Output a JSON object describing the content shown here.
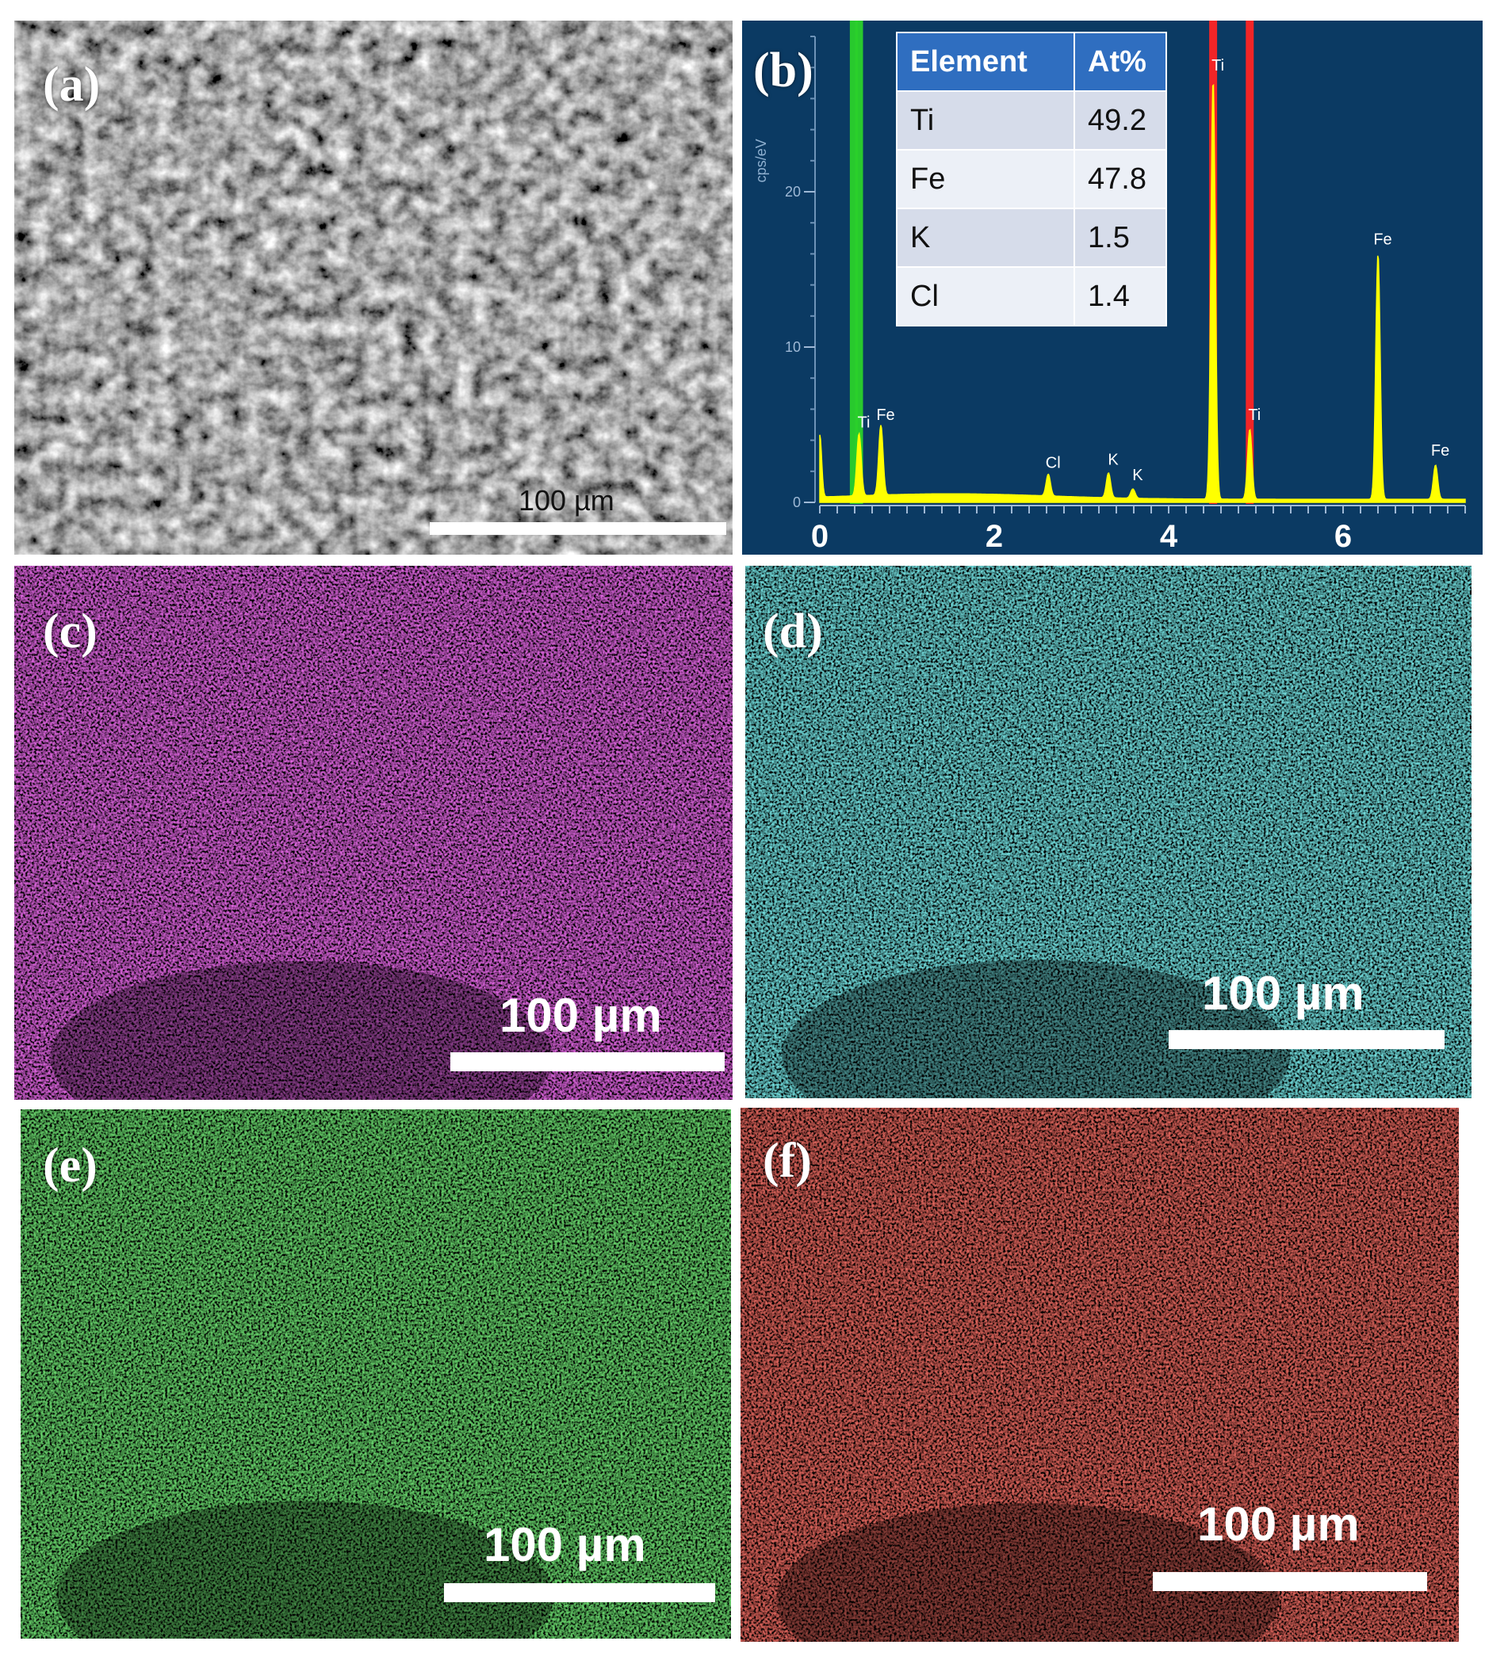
{
  "panels": [
    {
      "id": "a",
      "label": "(a)",
      "kind": "sem",
      "scale_label": "100 µm"
    },
    {
      "id": "b",
      "label": "(b)",
      "kind": "eds-spectrum"
    },
    {
      "id": "c",
      "label": "(c)",
      "kind": "map",
      "color": "#c624c8",
      "scale_label": "100 µm"
    },
    {
      "id": "d",
      "label": "(d)",
      "kind": "map",
      "color": "#2ec4c4",
      "scale_label": "100 µm"
    },
    {
      "id": "e",
      "label": "(e)",
      "kind": "map",
      "color": "#27b62a",
      "scale_label": "100 µm"
    },
    {
      "id": "f",
      "label": "(f)",
      "kind": "map",
      "color": "#c8241e",
      "scale_label": "100 µm"
    }
  ],
  "composition_table": {
    "headers": [
      "Element",
      "At%"
    ],
    "rows": [
      {
        "element": "Ti",
        "value": "49.2"
      },
      {
        "element": "Fe",
        "value": "47.8"
      },
      {
        "element": "K",
        "value": "1.5"
      },
      {
        "element": "Cl",
        "value": "1.4"
      }
    ]
  },
  "chart_data": {
    "type": "line",
    "ylabel": "cps/eV",
    "xlabel": "",
    "xlim": [
      0,
      7.4
    ],
    "ylim": [
      0,
      30
    ],
    "x_ticks": [
      0,
      2,
      4,
      6
    ],
    "y_ticks": [
      0,
      10,
      20
    ],
    "series_color": "#ffff00",
    "peaks": [
      {
        "label": "Ti",
        "x": 0.45,
        "y": 4.0
      },
      {
        "label": "Fe",
        "x": 0.7,
        "y": 4.5
      },
      {
        "label": "Cl",
        "x": 2.62,
        "y": 1.4
      },
      {
        "label": "K",
        "x": 3.31,
        "y": 1.6
      },
      {
        "label": "K",
        "x": 3.59,
        "y": 0.6
      },
      {
        "label": "Ti",
        "x": 4.51,
        "y": 27.0
      },
      {
        "label": "Ti",
        "x": 4.93,
        "y": 4.5
      },
      {
        "label": "Fe",
        "x": 6.4,
        "y": 15.8
      },
      {
        "label": "Fe",
        "x": 7.06,
        "y": 2.2
      }
    ],
    "markers": [
      {
        "x": 0.39,
        "color": "#2ad12a"
      },
      {
        "x": 0.45,
        "color": "#2ad12a"
      },
      {
        "x": 4.51,
        "color": "#ff2424"
      },
      {
        "x": 4.93,
        "color": "#ff2424"
      }
    ]
  }
}
